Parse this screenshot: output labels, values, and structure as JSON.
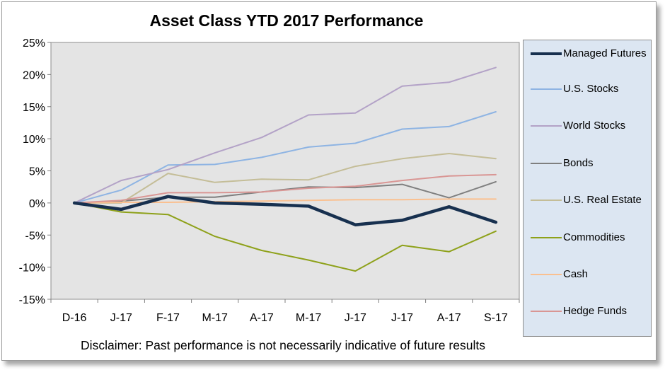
{
  "chart_data": {
    "type": "line",
    "title": "Asset Class YTD 2017 Performance",
    "xlabel": "",
    "ylabel": "",
    "categories": [
      "D-16",
      "J-17",
      "F-17",
      "M-17",
      "A-17",
      "M-17",
      "J-17",
      "J-17",
      "A-17",
      "S-17"
    ],
    "ylim": [
      -15,
      25
    ],
    "yticks": [
      -15,
      -10,
      -5,
      0,
      5,
      10,
      15,
      20,
      25
    ],
    "ytick_labels": [
      "-15%",
      "-10%",
      "-5%",
      "0%",
      "5%",
      "10%",
      "15%",
      "20%",
      "25%"
    ],
    "grid": false,
    "plot_background": "#e4e4e4",
    "legend_position": "right",
    "legend_background": "#dce6f2",
    "series": [
      {
        "name": "Managed Futures",
        "color": "#17304f",
        "width": 4.5,
        "values": [
          0,
          -1.0,
          1.0,
          0,
          -0.2,
          -0.5,
          -3.4,
          -2.7,
          -0.6,
          -3.0
        ]
      },
      {
        "name": "U.S. Stocks",
        "color": "#8eb4e3",
        "width": 2,
        "values": [
          0,
          2.0,
          5.9,
          6.0,
          7.1,
          8.7,
          9.3,
          11.5,
          11.9,
          14.2
        ]
      },
      {
        "name": "World Stocks",
        "color": "#b3a2c7",
        "width": 2,
        "values": [
          0,
          3.5,
          5.2,
          7.8,
          10.2,
          13.7,
          14.0,
          18.2,
          18.8,
          21.1
        ]
      },
      {
        "name": "Bonds",
        "color": "#7f7f7f",
        "width": 2,
        "values": [
          0,
          0.3,
          0.9,
          0.9,
          1.7,
          2.5,
          2.4,
          2.9,
          0.8,
          3.3
        ]
      },
      {
        "name": "U.S. Real Estate",
        "color": "#c4bd97",
        "width": 2,
        "values": [
          0,
          0,
          4.6,
          3.2,
          3.7,
          3.6,
          5.7,
          6.9,
          7.7,
          6.9
        ]
      },
      {
        "name": "Commodities",
        "color": "#8ea11a",
        "width": 2,
        "values": [
          0,
          -1.4,
          -1.8,
          -5.2,
          -7.4,
          -8.9,
          -10.6,
          -6.6,
          -7.6,
          -4.4
        ]
      },
      {
        "name": "Cash",
        "color": "#fac090",
        "width": 2,
        "values": [
          0,
          0.1,
          0.1,
          0.2,
          0.3,
          0.4,
          0.5,
          0.5,
          0.6,
          0.6
        ]
      },
      {
        "name": "Hedge Funds",
        "color": "#d99694",
        "width": 2,
        "values": [
          0,
          0.4,
          1.6,
          1.6,
          1.7,
          2.3,
          2.6,
          3.5,
          4.2,
          4.4
        ]
      }
    ]
  },
  "legend": {
    "items": [
      {
        "label": "Managed Futures",
        "color": "#17304f"
      },
      {
        "label": "U.S. Stocks",
        "color": "#8eb4e3"
      },
      {
        "label": "World Stocks",
        "color": "#b3a2c7"
      },
      {
        "label": "Bonds",
        "color": "#7f7f7f"
      },
      {
        "label": "U.S. Real Estate",
        "color": "#c4bd97"
      },
      {
        "label": "Commodities",
        "color": "#8ea11a"
      },
      {
        "label": "Cash",
        "color": "#fac090"
      },
      {
        "label": "Hedge Funds",
        "color": "#d99694"
      }
    ]
  },
  "footer": {
    "disclaimer": "Disclaimer: Past performance is not necessarily indicative of future results"
  }
}
